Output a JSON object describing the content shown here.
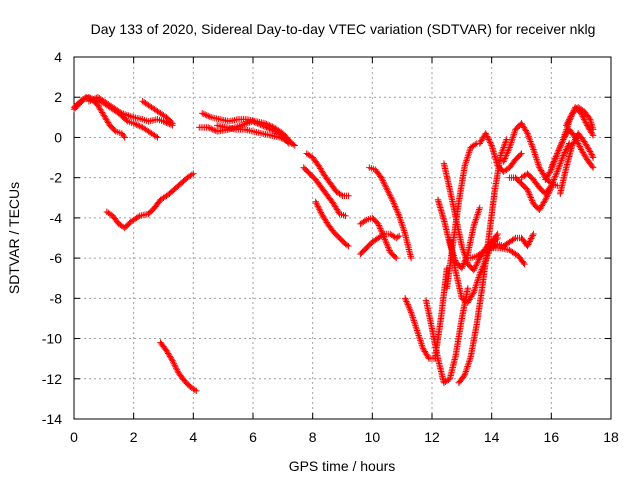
{
  "chart_data": {
    "type": "scatter",
    "title": "Day 133 of 2020, Sidereal Day-to-day VTEC variation (SDTVAR) for receiver nklg",
    "xlabel": "GPS time / hours",
    "ylabel": "SDTVAR / TECUs",
    "xlim": [
      0,
      18
    ],
    "ylim": [
      -14,
      4
    ],
    "xticks": [
      "0",
      "2",
      "4",
      "6",
      "8",
      "10",
      "12",
      "14",
      "16",
      "18"
    ],
    "yticks": [
      "4",
      "2",
      "0",
      "-2",
      "-4",
      "-6",
      "-8",
      "-10",
      "-12",
      "-14"
    ],
    "grid": true,
    "marker": "plus",
    "color": "#ff0000",
    "series": [
      {
        "name": "s1",
        "x": [
          0.0,
          0.2,
          0.4,
          0.6,
          0.8,
          1.0,
          1.2,
          1.4,
          1.6,
          1.7
        ],
        "y": [
          1.4,
          1.7,
          2.0,
          1.9,
          1.6,
          1.1,
          0.6,
          0.3,
          0.2,
          0.0
        ]
      },
      {
        "name": "s2",
        "x": [
          0.0,
          0.3,
          0.5,
          0.8,
          1.0,
          1.2,
          1.5,
          1.8,
          2.0,
          2.3,
          2.5,
          2.8
        ],
        "y": [
          1.5,
          1.9,
          2.0,
          1.8,
          1.7,
          1.5,
          1.2,
          0.8,
          0.7,
          0.5,
          0.3,
          0.0
        ]
      },
      {
        "name": "s3",
        "x": [
          0.5,
          0.8,
          1.0,
          1.2,
          1.4,
          1.6,
          2.0,
          2.3,
          2.5,
          2.8,
          3.0,
          3.3
        ],
        "y": [
          1.8,
          2.0,
          1.8,
          1.6,
          1.4,
          1.2,
          1.0,
          0.9,
          0.8,
          0.9,
          0.8,
          0.6
        ]
      },
      {
        "name": "s4",
        "x": [
          2.3,
          2.6,
          2.9,
          3.1,
          3.3
        ],
        "y": [
          1.8,
          1.5,
          1.2,
          1.0,
          0.7
        ]
      },
      {
        "name": "s5",
        "x": [
          1.1,
          1.3,
          1.5,
          1.7,
          1.9,
          2.2,
          2.5,
          2.7,
          2.9,
          3.2,
          3.5,
          3.8,
          4.0
        ],
        "y": [
          -3.7,
          -3.9,
          -4.3,
          -4.5,
          -4.2,
          -3.9,
          -3.8,
          -3.5,
          -3.1,
          -2.8,
          -2.4,
          -2.0,
          -1.8
        ]
      },
      {
        "name": "s6",
        "x": [
          2.9,
          3.1,
          3.3,
          3.5,
          3.7,
          3.9,
          4.1
        ],
        "y": [
          -10.2,
          -10.6,
          -11.1,
          -11.7,
          -12.1,
          -12.4,
          -12.6
        ]
      },
      {
        "name": "s7",
        "x": [
          4.3,
          4.6,
          4.9,
          5.2,
          5.5,
          5.8,
          6.1,
          6.4,
          6.7,
          7.0,
          7.3
        ],
        "y": [
          1.2,
          1.0,
          0.9,
          0.8,
          0.9,
          0.9,
          0.8,
          0.7,
          0.5,
          0.2,
          -0.3
        ]
      },
      {
        "name": "s8",
        "x": [
          4.2,
          4.5,
          4.8,
          5.2,
          5.6,
          6.0,
          6.3,
          6.6,
          6.9,
          7.2
        ],
        "y": [
          0.5,
          0.5,
          0.3,
          0.4,
          0.6,
          0.8,
          0.6,
          0.4,
          0.2,
          -0.3
        ]
      },
      {
        "name": "s9",
        "x": [
          4.8,
          5.1,
          5.4,
          5.7,
          6.0,
          6.3,
          6.6,
          6.9,
          7.2,
          7.4
        ],
        "y": [
          0.6,
          0.5,
          0.4,
          0.4,
          0.3,
          0.2,
          0.1,
          0.0,
          -0.2,
          -0.4
        ]
      },
      {
        "name": "s10",
        "x": [
          7.8,
          8.0,
          8.2,
          8.4,
          8.6,
          8.8,
          9.0,
          9.2
        ],
        "y": [
          -0.8,
          -1.0,
          -1.4,
          -1.9,
          -2.3,
          -2.7,
          -2.9,
          -2.9
        ]
      },
      {
        "name": "s11",
        "x": [
          7.7,
          7.9,
          8.1,
          8.3,
          8.5,
          8.7,
          8.9,
          9.1
        ],
        "y": [
          -1.5,
          -1.8,
          -2.1,
          -2.5,
          -2.9,
          -3.3,
          -3.8,
          -3.9
        ]
      },
      {
        "name": "s12",
        "x": [
          8.1,
          8.3,
          8.5,
          8.7,
          8.9,
          9.1,
          9.2
        ],
        "y": [
          -3.2,
          -3.8,
          -4.3,
          -4.7,
          -5.0,
          -5.3,
          -5.4
        ]
      },
      {
        "name": "s13",
        "x": [
          9.6,
          9.8,
          10.0,
          10.2,
          10.4,
          10.6,
          10.8,
          10.9
        ],
        "y": [
          -5.8,
          -5.5,
          -5.2,
          -5.0,
          -4.8,
          -4.8,
          -5.0,
          -4.9
        ]
      },
      {
        "name": "s14",
        "x": [
          9.6,
          9.8,
          10.0,
          10.2,
          10.4,
          10.6,
          10.8
        ],
        "y": [
          -4.3,
          -4.1,
          -4.0,
          -4.3,
          -5.0,
          -5.7,
          -6.0
        ]
      },
      {
        "name": "s15",
        "x": [
          9.9,
          10.1,
          10.3,
          10.5,
          10.7,
          10.9,
          11.1,
          11.2,
          11.3
        ],
        "y": [
          -1.5,
          -1.6,
          -2.0,
          -2.6,
          -3.2,
          -3.9,
          -4.8,
          -5.4,
          -6.0
        ]
      },
      {
        "name": "s16",
        "x": [
          11.1,
          11.3,
          11.5,
          11.7,
          11.9,
          12.1,
          12.3,
          12.5
        ],
        "y": [
          -8.0,
          -8.7,
          -9.6,
          -10.5,
          -11.0,
          -11.0,
          -9.0,
          -6.5
        ]
      },
      {
        "name": "s17",
        "x": [
          11.8,
          12.0,
          12.2,
          12.4,
          12.6,
          12.8,
          13.0,
          13.2
        ],
        "y": [
          -8.1,
          -9.5,
          -11.0,
          -12.2,
          -12.0,
          -10.8,
          -9.0,
          -7.5
        ]
      },
      {
        "name": "s18",
        "x": [
          12.2,
          12.4,
          12.6,
          12.8,
          13.0,
          13.2,
          13.4,
          13.6
        ],
        "y": [
          -3.1,
          -4.1,
          -5.3,
          -6.2,
          -6.5,
          -5.8,
          -4.4,
          -3.5
        ]
      },
      {
        "name": "s19",
        "x": [
          12.5,
          12.7,
          12.9,
          13.1,
          13.3,
          13.5
        ],
        "y": [
          -7.5,
          -5.3,
          -3.2,
          -1.4,
          -0.5,
          -0.3
        ]
      },
      {
        "name": "s20",
        "x": [
          12.4,
          12.6,
          12.8,
          13.0,
          13.2,
          13.4,
          13.6,
          13.8,
          14.0,
          14.2
        ],
        "y": [
          -1.3,
          -2.6,
          -4.0,
          -5.4,
          -6.3,
          -6.6,
          -6.0,
          -5.5,
          -5.2,
          -4.8
        ]
      },
      {
        "name": "s21",
        "x": [
          12.6,
          12.8,
          13.0,
          13.2,
          13.4,
          13.6,
          13.8,
          14.0,
          14.2
        ],
        "y": [
          -5.1,
          -6.7,
          -8.0,
          -8.2,
          -7.7,
          -6.8,
          -6.1,
          -5.3,
          -5.0
        ]
      },
      {
        "name": "s22",
        "x": [
          12.9,
          13.1,
          13.3,
          13.5,
          13.7,
          13.9,
          14.1,
          14.3,
          14.5
        ],
        "y": [
          -12.2,
          -11.8,
          -10.9,
          -9.3,
          -7.3,
          -5.0,
          -2.7,
          -0.9,
          -0.1
        ]
      },
      {
        "name": "s23",
        "x": [
          13.6,
          13.8,
          14.0,
          14.2,
          14.4,
          14.6,
          14.8,
          15.0
        ],
        "y": [
          -0.3,
          0.2,
          -0.4,
          -1.4,
          -1.7,
          -1.5,
          -1.1,
          -0.8
        ]
      },
      {
        "name": "s24",
        "x": [
          14.6,
          14.8,
          15.0,
          15.2,
          15.4,
          15.6,
          15.8,
          16.0
        ],
        "y": [
          -2.0,
          -2.0,
          -2.3,
          -2.6,
          -3.3,
          -3.6,
          -3.1,
          -2.5
        ]
      },
      {
        "name": "s25",
        "x": [
          14.4,
          14.6,
          14.8,
          15.0,
          15.2,
          15.4,
          15.6,
          15.8,
          16.0,
          16.2
        ],
        "y": [
          -1.2,
          -0.5,
          0.4,
          0.7,
          0.2,
          -0.6,
          -1.5,
          -2.0,
          -2.3,
          -2.4
        ]
      },
      {
        "name": "s26",
        "x": [
          13.3,
          13.5,
          13.8,
          14.0,
          14.3,
          14.6,
          14.9,
          15.1
        ],
        "y": [
          -6.0,
          -5.9,
          -5.6,
          -5.5,
          -5.5,
          -5.6,
          -5.9,
          -6.3
        ]
      },
      {
        "name": "s27",
        "x": [
          14.0,
          14.2,
          14.4,
          14.6,
          14.8,
          15.0,
          15.2,
          15.4
        ],
        "y": [
          -5.5,
          -5.3,
          -5.4,
          -5.2,
          -5.0,
          -5.0,
          -5.4,
          -4.8
        ]
      },
      {
        "name": "s28",
        "x": [
          15.0,
          15.2,
          15.4,
          15.6,
          15.8,
          16.0,
          16.2,
          16.4,
          16.6
        ],
        "y": [
          -2.0,
          -1.8,
          -2.1,
          -2.5,
          -2.8,
          -2.4,
          -1.7,
          -0.9,
          -0.3
        ]
      },
      {
        "name": "s29",
        "x": [
          15.8,
          16.0,
          16.2,
          16.4,
          16.6,
          16.8,
          17.0,
          17.2,
          17.4
        ],
        "y": [
          -2.1,
          -1.6,
          -0.8,
          -0.1,
          0.8,
          1.5,
          1.2,
          0.6,
          0.1
        ]
      },
      {
        "name": "s30",
        "x": [
          16.0,
          16.2,
          16.4,
          16.6,
          16.8,
          17.0,
          17.2,
          17.4
        ],
        "y": [
          -1.5,
          -0.8,
          -0.1,
          0.4,
          0.0,
          -0.6,
          -1.1,
          -1.5
        ]
      },
      {
        "name": "s31",
        "x": [
          16.3,
          16.5,
          16.7,
          16.9,
          17.1,
          17.3,
          17.4
        ],
        "y": [
          -2.8,
          -1.5,
          -0.4,
          0.2,
          -0.2,
          -0.7,
          -1.0
        ]
      },
      {
        "name": "s32",
        "x": [
          16.5,
          16.7,
          16.9,
          17.1,
          17.3,
          17.4
        ],
        "y": [
          0.6,
          1.2,
          1.5,
          1.3,
          0.9,
          0.4
        ]
      }
    ]
  }
}
